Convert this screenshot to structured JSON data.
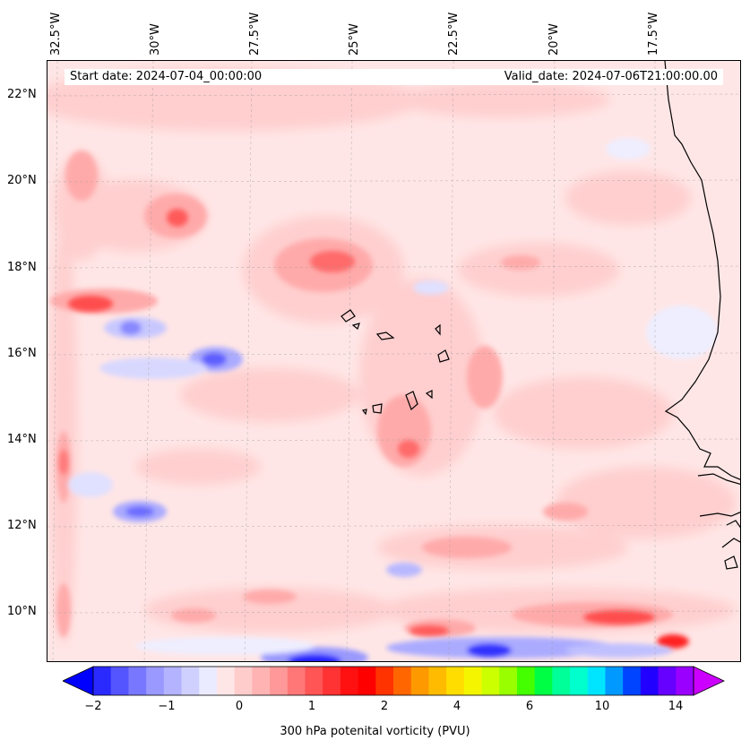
{
  "map": {
    "date_labels": {
      "start": "Start date: 2024-07-04_00:00:00",
      "valid": "Valid_date: 2024-07-06T21:00:00.00"
    },
    "longitude_labels": [
      "32.5°W",
      "30°W",
      "27.5°W",
      "25°W",
      "22.5°W",
      "20°W",
      "17.5°W"
    ],
    "latitude_labels": [
      "22°N",
      "20°N",
      "18°N",
      "16°N",
      "14°N",
      "12°N",
      "10°N"
    ],
    "background_color": "#ffe6e6"
  },
  "colorbar": {
    "label": "300 hPa potenital vorticity (PVU)",
    "tick_labels": [
      "−2",
      "−1",
      "0",
      "1",
      "2",
      "4",
      "6",
      "10",
      "14"
    ],
    "colors": [
      "#0000ff",
      "#2a2aff",
      "#5555ff",
      "#7777ff",
      "#9999ff",
      "#b3b3ff",
      "#d0d0ff",
      "#ebebff",
      "#ffe6e6",
      "#ffcccc",
      "#ffb3b3",
      "#ff9999",
      "#ff7777",
      "#ff5555",
      "#ff3333",
      "#ff1111",
      "#ff0000",
      "#ff3300",
      "#ff6600",
      "#ff9900",
      "#ffbb00",
      "#ffdd00",
      "#f5f500",
      "#ccff00",
      "#99ff00",
      "#44ff00",
      "#00ff44",
      "#00ff99",
      "#00ffcc",
      "#00e5ff",
      "#0099ff",
      "#0044ff",
      "#2200ff",
      "#6600ff",
      "#9900ff",
      "#cc00ff"
    ]
  }
}
